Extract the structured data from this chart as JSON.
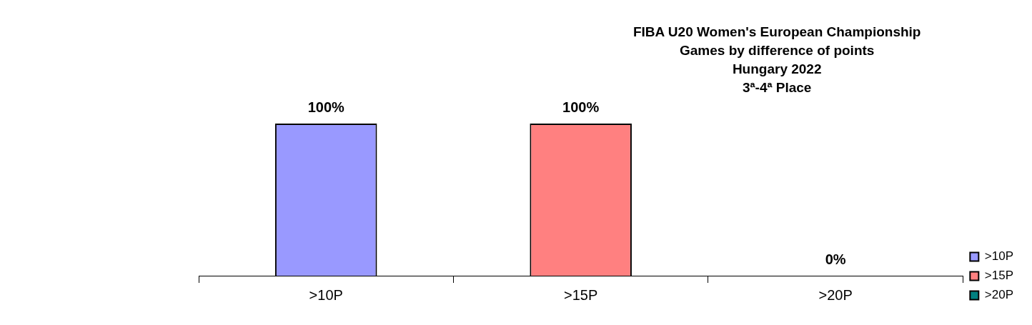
{
  "chart_data": {
    "type": "bar",
    "title": [
      "FIBA U20 Women's European Championship",
      "Games by difference of points",
      "Hungary 2022",
      "3ª-4ª Place"
    ],
    "categories": [
      ">10P",
      ">15P",
      ">20P"
    ],
    "series": [
      {
        "name": ">10P",
        "color": "#9999ff",
        "values": [
          100,
          null,
          null
        ],
        "value_labels": [
          "100%",
          null,
          null
        ]
      },
      {
        "name": ">15P",
        "color": "#ff8080",
        "values": [
          null,
          100,
          null
        ],
        "value_labels": [
          null,
          "100%",
          null
        ]
      },
      {
        "name": ">20P",
        "color": "#008080",
        "values": [
          null,
          null,
          0
        ],
        "value_labels": [
          null,
          null,
          "0%"
        ]
      }
    ],
    "legend": "bottom right",
    "grid": false
  }
}
